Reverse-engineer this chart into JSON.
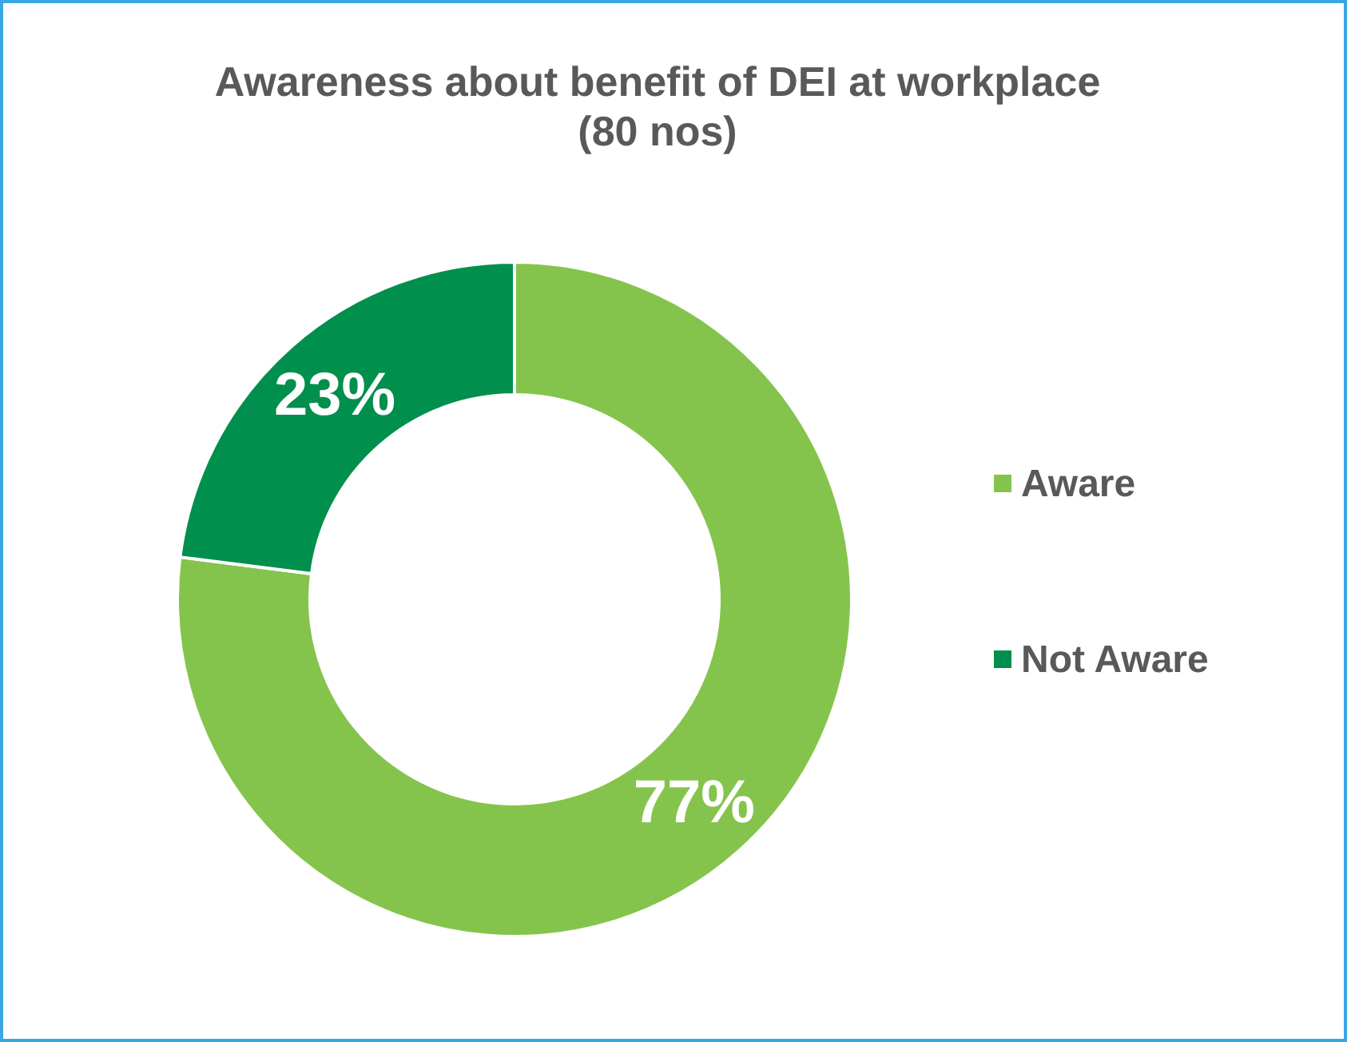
{
  "chart_data": {
    "type": "donut",
    "title": "Awareness about benefit of DEI at workplace\n(80 nos)",
    "categories": [
      "Aware",
      "Not Aware"
    ],
    "values": [
      77,
      23
    ],
    "value_labels": [
      "77%",
      "23%"
    ],
    "colors": [
      "#85c44c",
      "#008f4c"
    ],
    "legend": "right"
  }
}
